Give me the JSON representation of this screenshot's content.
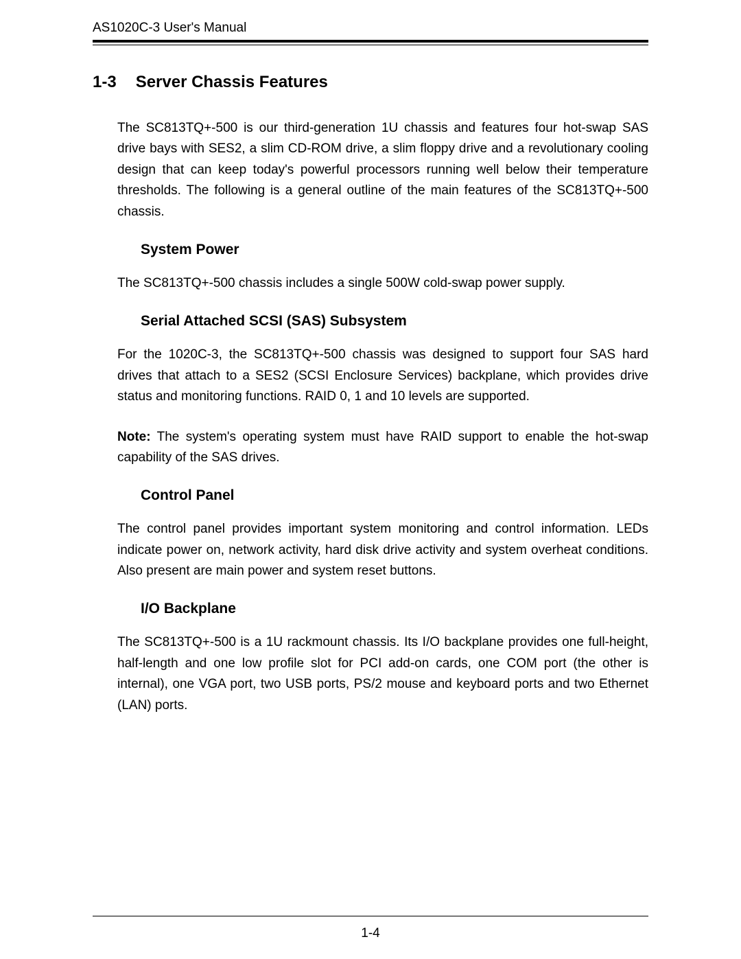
{
  "header": {
    "title": "AS1020C-3 User's Manual"
  },
  "section": {
    "number": "1-3",
    "title": "Server Chassis Features",
    "intro": "The SC813TQ+-500 is our third-generation 1U chassis and features four hot-swap SAS drive bays with SES2, a slim CD-ROM drive, a slim floppy drive and a revolutionary cooling design that can keep today's powerful processors running well below their temperature thresholds.  The following is a general outline of the main features of the SC813TQ+-500 chassis."
  },
  "subsections": {
    "system_power": {
      "heading": "System Power",
      "body": "The SC813TQ+-500 chassis includes a single 500W cold-swap power supply."
    },
    "sas": {
      "heading": "Serial Attached SCSI (SAS) Subsystem",
      "body1": "For the 1020C-3, the SC813TQ+-500 chassis was designed to support four SAS hard drives that attach to a SES2 (SCSI Enclosure Services) backplane, which provides drive status and monitoring functions.  RAID 0, 1 and 10 levels are supported.",
      "note_label": "Note:",
      "note_body": " The system's operating system must have RAID support to enable the hot-swap capability of the SAS drives."
    },
    "control_panel": {
      "heading": "Control Panel",
      "body": "The control panel provides important system monitoring and control information.  LEDs indicate power on, network activity, hard disk drive activity and system overheat conditions.  Also present are main power and system reset buttons."
    },
    "io_backplane": {
      "heading": "I/O Backplane",
      "body": "The SC813TQ+-500 is a 1U rackmount chassis.  Its I/O backplane provides one full-height, half-length and one low profile slot for PCI add-on cards, one COM port (the other is internal), one VGA port, two USB ports, PS/2 mouse and keyboard ports and two Ethernet (LAN) ports."
    }
  },
  "footer": {
    "page_number": "1-4"
  }
}
